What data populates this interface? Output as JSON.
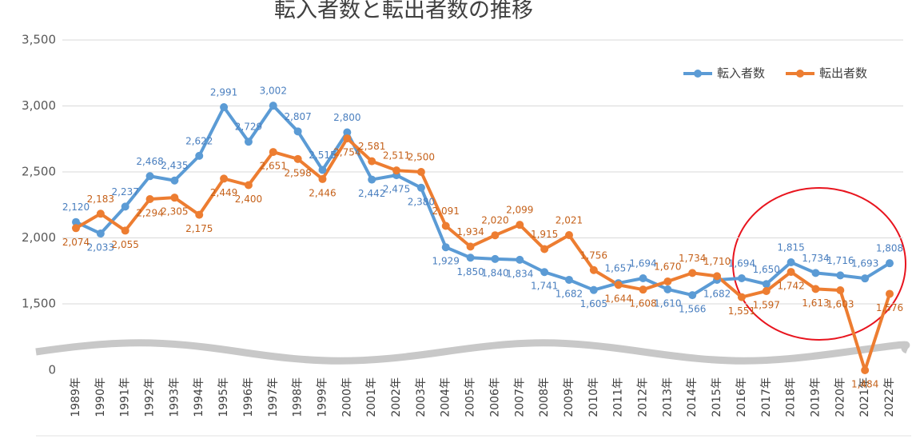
{
  "chart_data": {
    "type": "line",
    "title": "転入者数と転出者数の推移",
    "categories": [
      "1989年",
      "1990年",
      "1991年",
      "1992年",
      "1993年",
      "1994年",
      "1995年",
      "1996年",
      "1997年",
      "1998年",
      "1999年",
      "2000年",
      "2001年",
      "2002年",
      "2003年",
      "2004年",
      "2005年",
      "2006年",
      "2007年",
      "2008年",
      "2009年",
      "2010年",
      "2011年",
      "2012年",
      "2013年",
      "2014年",
      "2015年",
      "2016年",
      "2017年",
      "2018年",
      "2019年",
      "2020年",
      "2021年",
      "2022年"
    ],
    "series": [
      {
        "name": "転入者数",
        "color": "#5b9bd5",
        "values": [
          2120,
          2033,
          2237,
          2468,
          2435,
          2622,
          2991,
          2729,
          3002,
          2807,
          2515,
          2800,
          2442,
          2475,
          2380,
          1929,
          1850,
          1840,
          1834,
          1741,
          1682,
          1605,
          1657,
          1694,
          1610,
          1566,
          1682,
          1694,
          1650,
          1815,
          1734,
          1716,
          1693,
          1808
        ],
        "value_labels": [
          "2,120",
          "2,033",
          "2,237",
          "2,468",
          "2,435",
          "2,622",
          "2,991",
          "2,729",
          "3,002",
          "2,807",
          "2,515",
          "2,800",
          "2,442",
          "2,475",
          "2,380",
          "1,929",
          "1,850",
          "1,840",
          "1,834",
          "1,741",
          "1,682",
          "1,605",
          "1,657",
          "1,694",
          "1,610",
          "1,566",
          "1,682",
          "1,694",
          "1,650",
          "1,815",
          "1,734",
          "1,716",
          "1,693",
          "1,808"
        ]
      },
      {
        "name": "転出者数",
        "color": "#ed7d31",
        "values": [
          2074,
          2183,
          2055,
          2294,
          2305,
          2175,
          2449,
          2400,
          2651,
          2598,
          2446,
          2754,
          2581,
          2511,
          2500,
          2091,
          1934,
          2020,
          2099,
          1915,
          2021,
          1756,
          1644,
          1608,
          1670,
          1734,
          1710,
          1551,
          1597,
          1742,
          1613,
          1603,
          1484,
          1576
        ],
        "value_labels": [
          "2,074",
          "2,183",
          "2,055",
          "2,294",
          "2,305",
          "2,175",
          "2,449",
          "2,400",
          "2,651",
          "2,598",
          "2,446",
          "2,754",
          "2,581",
          "2,511",
          "2,500",
          "2,091",
          "1,934",
          "2,020",
          "2,099",
          "1,915",
          "2,021",
          "1,756",
          "1,644",
          "1,608",
          "1,670",
          "1,734",
          "1,710",
          "1,551",
          "1,597",
          "1,742",
          "1,613",
          "1,603",
          "1,484",
          "1,576"
        ]
      }
    ],
    "ylim": [
      0,
      3500
    ],
    "yticks": [
      0,
      {
        "value": 1500,
        "label": "1,500"
      },
      {
        "value": 2000,
        "label": "2,000"
      },
      {
        "value": 2500,
        "label": "2,500"
      },
      {
        "value": 3000,
        "label": "3,000"
      },
      {
        "value": 3500,
        "label": "3,500"
      }
    ],
    "axis_break": true,
    "grid": true,
    "legend": "upper right"
  }
}
